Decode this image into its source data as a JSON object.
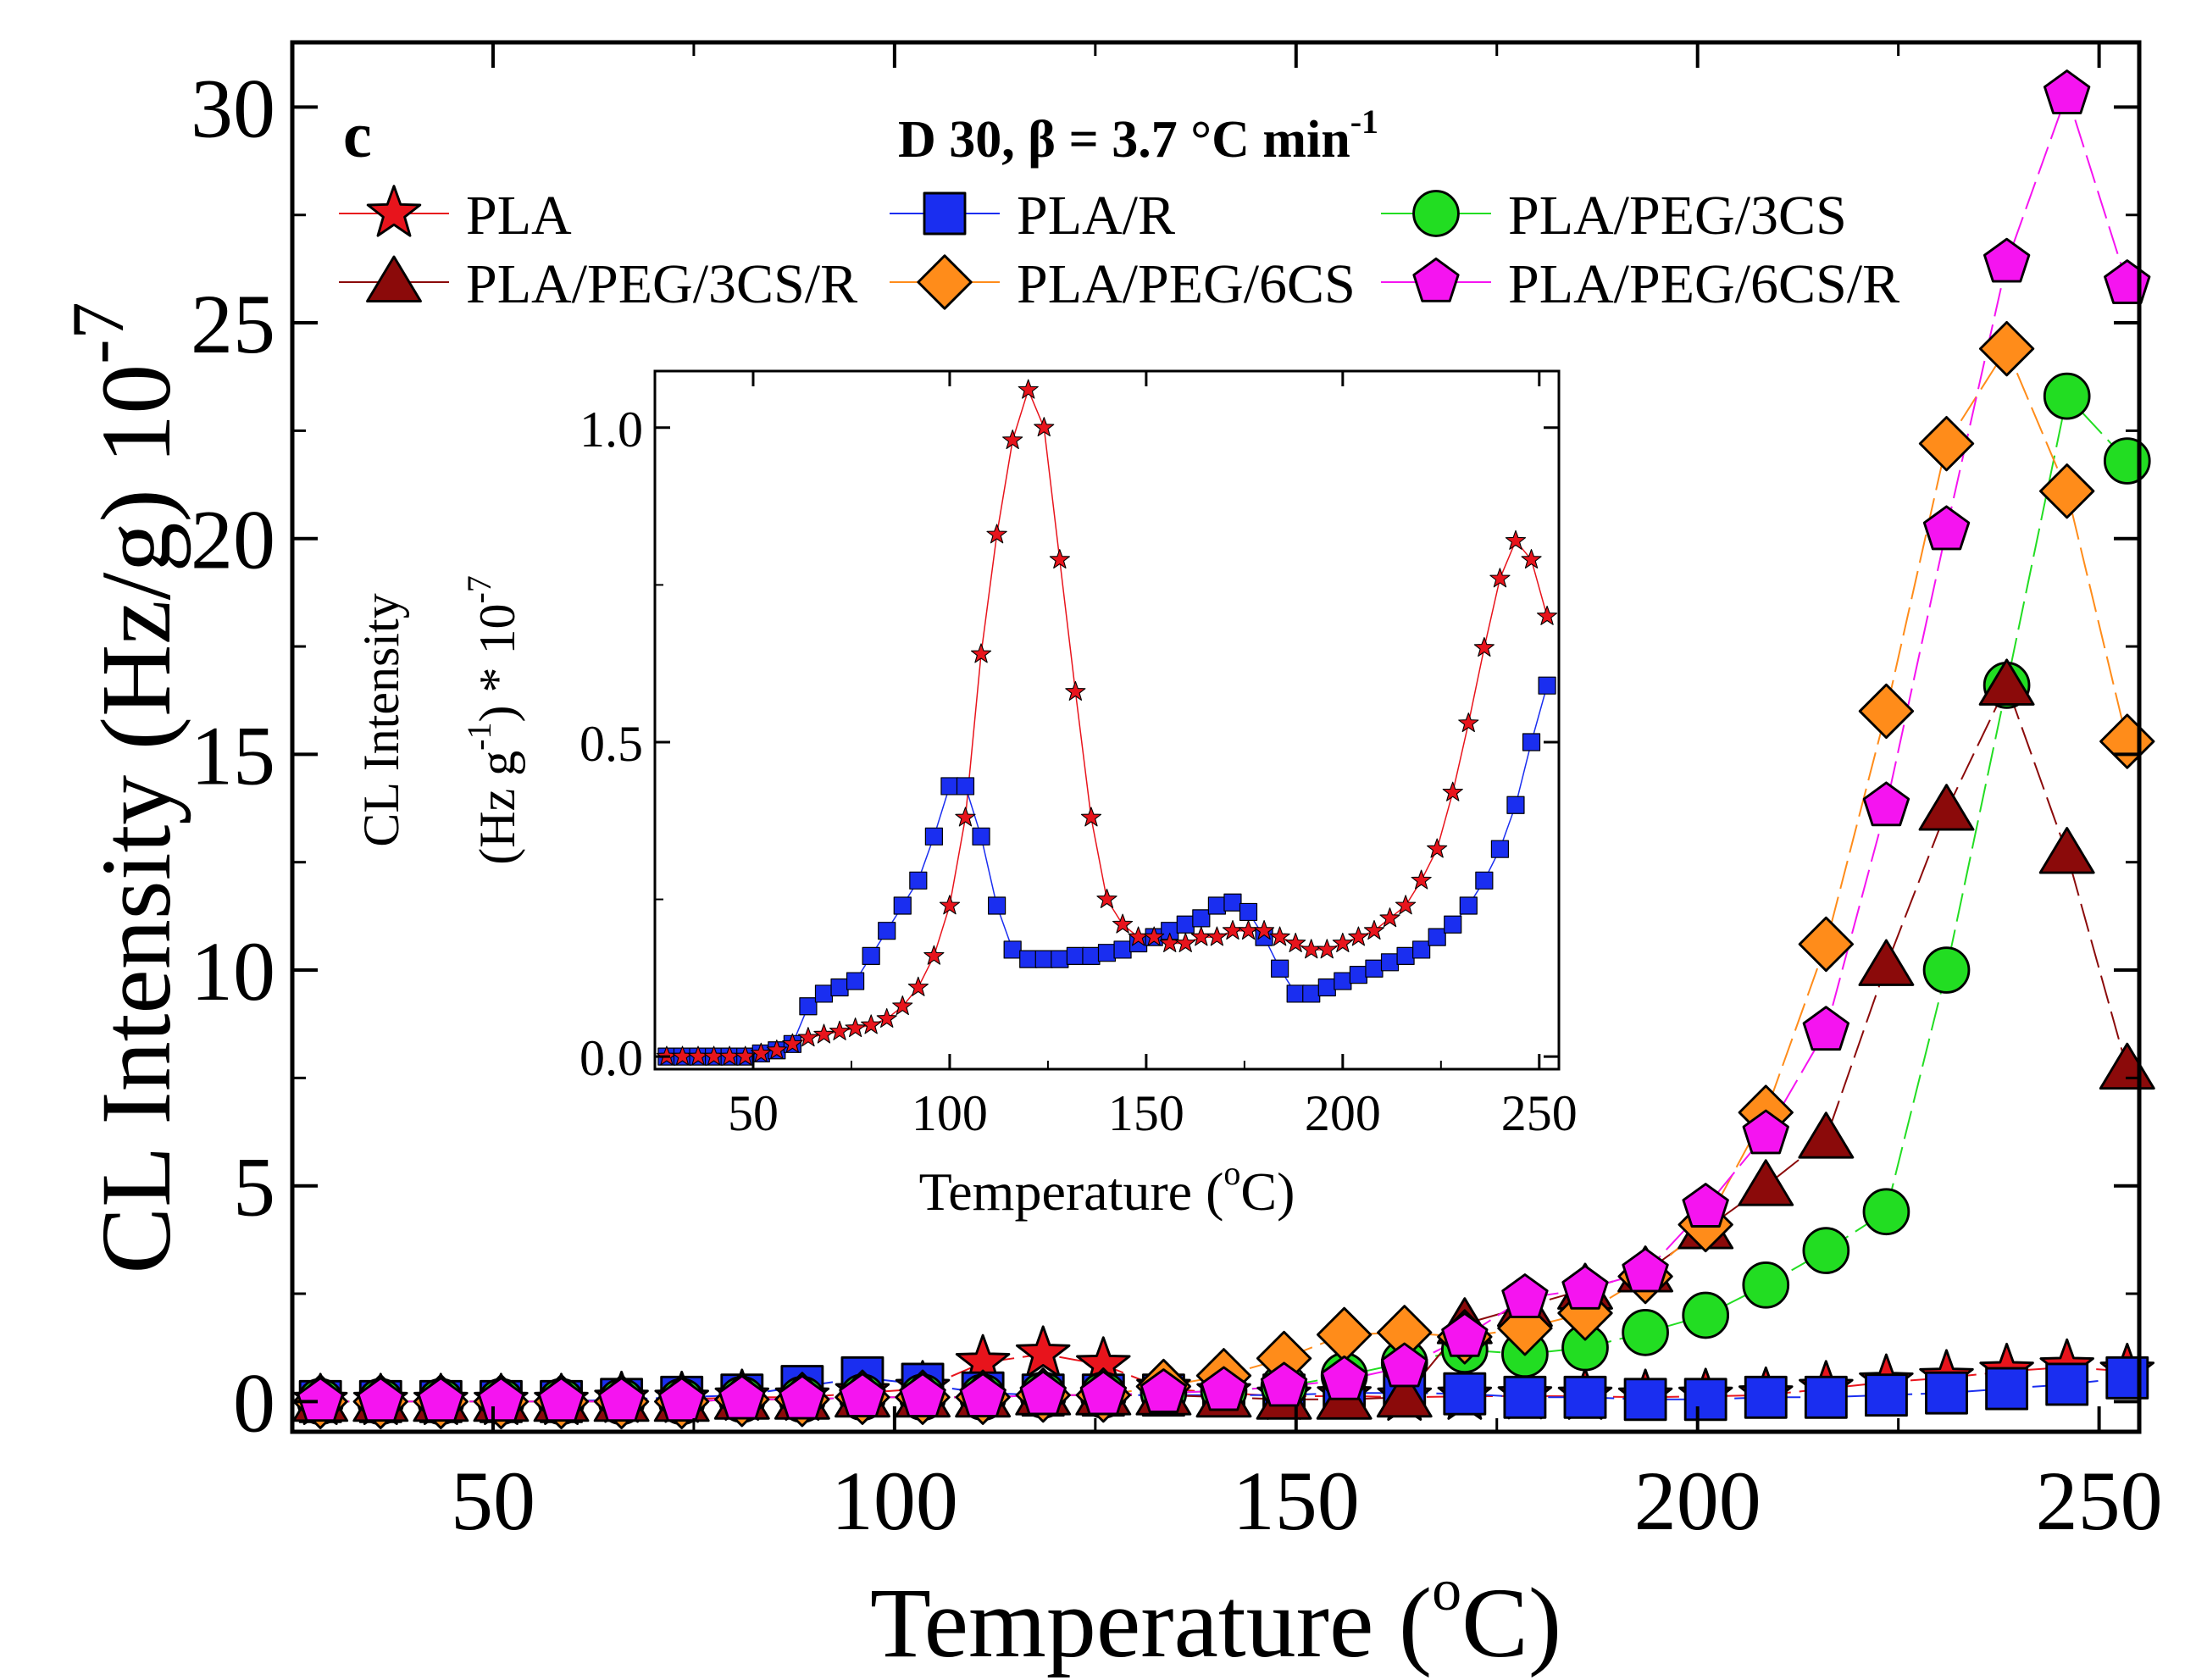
{
  "chart_data": [
    {
      "id": "main",
      "type": "scatter",
      "panel_label": "c",
      "subtitle": "D 30, β = 3.7 °C min",
      "subtitle_exp": "-1",
      "xlabel": "Temperature (",
      "xlabel_sup": "o",
      "xlabel_end": "C)",
      "ylabel": "CL Intensity (Hz/g) 10",
      "ylabel_sup": "-7",
      "xlim": [
        25,
        255
      ],
      "ylim": [
        -0.7,
        31.5
      ],
      "xticks": [
        50,
        100,
        150,
        200,
        250
      ],
      "yticks": [
        0,
        5,
        10,
        15,
        20,
        25,
        30
      ],
      "x": [
        28.5,
        36,
        43.5,
        51,
        58.5,
        66,
        73.5,
        81,
        88.5,
        96,
        103.5,
        111,
        118.5,
        126,
        133.5,
        141,
        148.5,
        156,
        163.5,
        171,
        178.5,
        186,
        193.5,
        201,
        208.5,
        216,
        223.5,
        231,
        238.5,
        246,
        253.5
      ],
      "series": [
        {
          "name": "PLA",
          "marker": "star",
          "fill": "#e8141c",
          "line": "#e8141c",
          "values": [
            0,
            0,
            0,
            0,
            0,
            0.05,
            0.05,
            0.1,
            0.1,
            0.2,
            0.3,
            0.9,
            1.1,
            0.85,
            0.3,
            0.2,
            0.12,
            0.13,
            0.1,
            0.12,
            0.13,
            0.12,
            0.1,
            0.12,
            0.15,
            0.3,
            0.45,
            0.55,
            0.7,
            0.8,
            0.7
          ]
        },
        {
          "name": "PLA/R",
          "marker": "square",
          "fill": "#1a2ef0",
          "line": "#1a2ef0",
          "values": [
            0,
            0,
            0,
            0,
            0,
            0.05,
            0.1,
            0.15,
            0.35,
            0.55,
            0.4,
            0.2,
            0.15,
            0.15,
            0.15,
            0.15,
            0.15,
            0.2,
            0.2,
            0.18,
            0.1,
            0.1,
            0.05,
            0.05,
            0.1,
            0.1,
            0.15,
            0.2,
            0.3,
            0.4,
            0.55
          ]
        },
        {
          "name": "PLA/PEG/3CS",
          "marker": "circle",
          "fill": "#22dd22",
          "line": "#22dd22",
          "values": [
            0,
            0,
            0,
            0,
            0,
            0,
            0,
            0.05,
            0.05,
            0.1,
            0.1,
            0.1,
            0.15,
            0.15,
            0.2,
            0.25,
            0.35,
            0.6,
            0.9,
            1.2,
            1.1,
            1.25,
            1.6,
            2.0,
            2.7,
            3.5,
            4.4,
            10.0,
            16.6,
            23.3,
            21.8
          ]
        },
        {
          "name": "PLA/PEG/3CS/R",
          "marker": "triangle",
          "fill": "#8b0a0a",
          "line": "#8b0a0a",
          "values": [
            0,
            0,
            0,
            0,
            0,
            0,
            0,
            0.05,
            0.05,
            0.1,
            0.1,
            0.1,
            0.15,
            0.15,
            0.15,
            0.1,
            0.05,
            0.05,
            0.1,
            1.8,
            2.2,
            2.6,
            3.0,
            4.0,
            5.0,
            6.1,
            10.1,
            13.7,
            16.6,
            12.7,
            7.7
          ]
        },
        {
          "name": "PLA/PEG/6CS",
          "marker": "diamond",
          "fill": "#ff8c1a",
          "line": "#ff8c1a",
          "values": [
            0,
            0,
            0,
            0,
            0,
            0,
            0,
            0.05,
            0.05,
            0.1,
            0.1,
            0.1,
            0.15,
            0.15,
            0.35,
            0.6,
            1.0,
            1.55,
            1.6,
            1.5,
            1.7,
            2.05,
            2.9,
            4.1,
            6.7,
            10.6,
            16.0,
            22.2,
            24.4,
            21.1,
            15.3
          ]
        },
        {
          "name": "PLA/PEG/6CS/R",
          "marker": "pentagon",
          "fill": "#f514f0",
          "line": "#f514f0",
          "values": [
            0,
            0,
            0,
            0,
            0,
            0,
            0,
            0.05,
            0.05,
            0.1,
            0.1,
            0.1,
            0.15,
            0.15,
            0.2,
            0.25,
            0.35,
            0.5,
            0.8,
            1.5,
            2.4,
            2.6,
            3.0,
            4.5,
            6.2,
            8.6,
            13.8,
            20.2,
            26.4,
            30.3,
            25.9
          ]
        }
      ]
    },
    {
      "id": "inset",
      "type": "scatter",
      "xlabel": "Temperature (",
      "xlabel_sup": "o",
      "xlabel_end": "C)",
      "ylabel_line1": "CL Intensity",
      "ylabel_line2a": "(Hz g",
      "ylabel_line2_sup1": "-1",
      "ylabel_line2b": ") * 10",
      "ylabel_line2_sup2": "-7",
      "xlim": [
        25,
        255
      ],
      "ylim": [
        -0.02,
        1.09
      ],
      "xticks": [
        50,
        100,
        150,
        200,
        250
      ],
      "yticks": [
        0.0,
        0.5,
        1.0
      ],
      "ytick_labels": [
        "0.0",
        "0.5",
        "1.0"
      ],
      "series": [
        {
          "name": "PLA",
          "marker": "star",
          "fill": "#e8141c",
          "line": "#e8141c",
          "x": [
            28,
            32,
            36,
            40,
            44,
            48,
            52,
            56,
            60,
            64,
            68,
            72,
            76,
            80,
            84,
            88,
            92,
            96,
            100,
            104,
            108,
            112,
            116,
            120,
            124,
            128,
            132,
            136,
            140,
            144,
            148,
            152,
            156,
            160,
            164,
            168,
            172,
            176,
            180,
            184,
            188,
            192,
            196,
            200,
            204,
            208,
            212,
            216,
            220,
            224,
            228,
            232,
            236,
            240,
            244,
            248,
            252
          ],
          "values": [
            0,
            0,
            0,
            0,
            0,
            0,
            0.005,
            0.01,
            0.02,
            0.03,
            0.035,
            0.04,
            0.045,
            0.05,
            0.06,
            0.08,
            0.11,
            0.16,
            0.24,
            0.38,
            0.64,
            0.83,
            0.98,
            1.06,
            1.0,
            0.79,
            0.58,
            0.38,
            0.25,
            0.21,
            0.19,
            0.19,
            0.18,
            0.18,
            0.19,
            0.19,
            0.2,
            0.2,
            0.2,
            0.19,
            0.18,
            0.17,
            0.17,
            0.18,
            0.19,
            0.2,
            0.22,
            0.24,
            0.28,
            0.33,
            0.42,
            0.53,
            0.65,
            0.76,
            0.82,
            0.79,
            0.7
          ]
        },
        {
          "name": "PLA/R",
          "marker": "square",
          "fill": "#1a2ef0",
          "line": "#1a2ef0",
          "x": [
            28,
            32,
            36,
            40,
            44,
            48,
            52,
            56,
            60,
            64,
            68,
            72,
            76,
            80,
            84,
            88,
            92,
            96,
            100,
            104,
            108,
            112,
            116,
            120,
            124,
            128,
            132,
            136,
            140,
            144,
            148,
            152,
            156,
            160,
            164,
            168,
            172,
            176,
            180,
            184,
            188,
            192,
            196,
            200,
            204,
            208,
            212,
            216,
            220,
            224,
            228,
            232,
            236,
            240,
            244,
            248,
            252
          ],
          "values": [
            0,
            0,
            0,
            0,
            0,
            0,
            0.005,
            0.01,
            0.02,
            0.08,
            0.1,
            0.11,
            0.12,
            0.16,
            0.2,
            0.24,
            0.28,
            0.35,
            0.43,
            0.43,
            0.35,
            0.24,
            0.17,
            0.155,
            0.155,
            0.155,
            0.16,
            0.16,
            0.165,
            0.17,
            0.18,
            0.19,
            0.2,
            0.21,
            0.22,
            0.24,
            0.245,
            0.23,
            0.19,
            0.14,
            0.1,
            0.1,
            0.11,
            0.12,
            0.13,
            0.14,
            0.15,
            0.16,
            0.17,
            0.19,
            0.21,
            0.24,
            0.28,
            0.33,
            0.4,
            0.5,
            0.59
          ]
        }
      ]
    }
  ]
}
